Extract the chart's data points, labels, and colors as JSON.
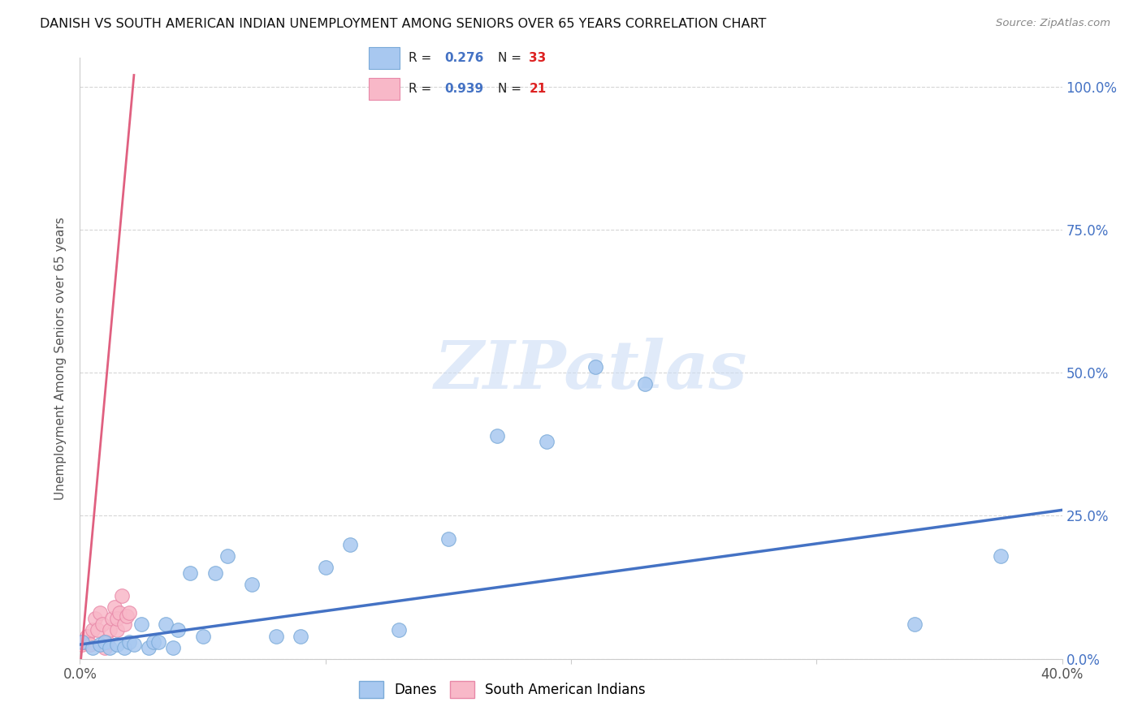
{
  "title": "DANISH VS SOUTH AMERICAN INDIAN UNEMPLOYMENT AMONG SENIORS OVER 65 YEARS CORRELATION CHART",
  "source": "Source: ZipAtlas.com",
  "ylabel": "Unemployment Among Seniors over 65 years",
  "xlim": [
    0.0,
    0.4
  ],
  "ylim": [
    0.0,
    1.05
  ],
  "xticks": [
    0.0,
    0.1,
    0.2,
    0.3,
    0.4
  ],
  "xticklabels": [
    "0.0%",
    "",
    "",
    "",
    "40.0%"
  ],
  "yticks": [
    0.0,
    0.25,
    0.5,
    0.75,
    1.0
  ],
  "yticklabels_right": [
    "0.0%",
    "25.0%",
    "50.0%",
    "75.0%",
    "100.0%"
  ],
  "danes_color": "#a8c8f0",
  "danes_edge_color": "#7aaad8",
  "sai_color": "#f8b8c8",
  "sai_edge_color": "#e888a8",
  "danes_line_color": "#4472c4",
  "sai_line_color": "#e06080",
  "danes_R": 0.276,
  "danes_N": 33,
  "sai_R": 0.939,
  "sai_N": 21,
  "watermark": "ZIPatlas",
  "danes_scatter_x": [
    0.001,
    0.005,
    0.008,
    0.01,
    0.012,
    0.015,
    0.018,
    0.02,
    0.022,
    0.025,
    0.028,
    0.03,
    0.032,
    0.035,
    0.038,
    0.04,
    0.045,
    0.05,
    0.055,
    0.06,
    0.07,
    0.08,
    0.09,
    0.1,
    0.11,
    0.13,
    0.15,
    0.17,
    0.19,
    0.21,
    0.23,
    0.34,
    0.375
  ],
  "danes_scatter_y": [
    0.03,
    0.02,
    0.025,
    0.03,
    0.02,
    0.025,
    0.02,
    0.03,
    0.025,
    0.06,
    0.02,
    0.03,
    0.03,
    0.06,
    0.02,
    0.05,
    0.15,
    0.04,
    0.15,
    0.18,
    0.13,
    0.04,
    0.04,
    0.16,
    0.2,
    0.05,
    0.21,
    0.39,
    0.38,
    0.51,
    0.48,
    0.06,
    0.18
  ],
  "sai_scatter_x": [
    0.001,
    0.002,
    0.003,
    0.004,
    0.005,
    0.006,
    0.007,
    0.008,
    0.009,
    0.01,
    0.011,
    0.012,
    0.013,
    0.014,
    0.015,
    0.015,
    0.016,
    0.017,
    0.018,
    0.019,
    0.02
  ],
  "sai_scatter_y": [
    0.025,
    0.03,
    0.04,
    0.025,
    0.05,
    0.07,
    0.05,
    0.08,
    0.06,
    0.02,
    0.03,
    0.05,
    0.07,
    0.09,
    0.05,
    0.07,
    0.08,
    0.11,
    0.06,
    0.075,
    0.08
  ],
  "sai_line_x0": 0.0,
  "sai_line_x1": 0.022,
  "sai_line_y0": -0.02,
  "sai_line_y1": 1.02,
  "danes_line_x0": 0.0,
  "danes_line_x1": 0.4,
  "danes_line_y0": 0.025,
  "danes_line_y1": 0.26
}
